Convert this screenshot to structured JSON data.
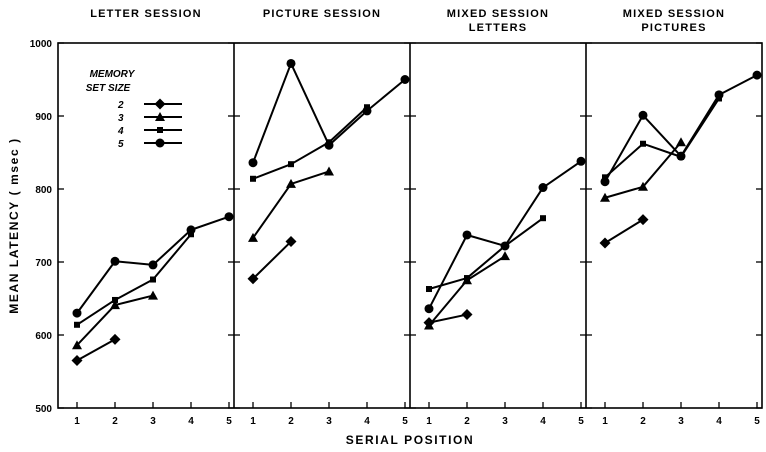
{
  "chart_data": {
    "type": "line",
    "ylabel": "MEAN LATENCY ( msec )",
    "xlabel": "SERIAL POSITION",
    "ylim": [
      500,
      1000
    ],
    "yticks": [
      "500",
      "600",
      "700",
      "800",
      "900",
      "1000"
    ],
    "xticks": [
      "1",
      "2",
      "3",
      "4",
      "5"
    ],
    "legend": {
      "title_lines": [
        "MEMORY",
        "SET SIZE"
      ],
      "placement": "top-left of first panel",
      "entries": [
        {
          "label": "2",
          "marker": "diamond"
        },
        {
          "label": "3",
          "marker": "triangle"
        },
        {
          "label": "4",
          "marker": "square"
        },
        {
          "label": "5",
          "marker": "circle"
        }
      ]
    },
    "panels": [
      {
        "title_lines": [
          "LETTER SESSION"
        ],
        "series": [
          {
            "set_size": "2",
            "marker": "diamond",
            "x": [
              1,
              2
            ],
            "y": [
              565,
              594
            ]
          },
          {
            "set_size": "3",
            "marker": "triangle",
            "x": [
              1,
              2,
              3
            ],
            "y": [
              586,
              641,
              654
            ]
          },
          {
            "set_size": "4",
            "marker": "square",
            "x": [
              1,
              2,
              3,
              4
            ],
            "y": [
              614,
              648,
              676,
              738
            ]
          },
          {
            "set_size": "5",
            "marker": "circle",
            "x": [
              1,
              2,
              3,
              4,
              5
            ],
            "y": [
              630,
              701,
              696,
              744,
              762
            ]
          }
        ]
      },
      {
        "title_lines": [
          "PICTURE SESSION"
        ],
        "series": [
          {
            "set_size": "2",
            "marker": "diamond",
            "x": [
              1,
              2
            ],
            "y": [
              677,
              728
            ]
          },
          {
            "set_size": "3",
            "marker": "triangle",
            "x": [
              1,
              2,
              3
            ],
            "y": [
              733,
              807,
              824
            ]
          },
          {
            "set_size": "4",
            "marker": "square",
            "x": [
              1,
              2,
              3,
              4
            ],
            "y": [
              814,
              834,
              864,
              912
            ]
          },
          {
            "set_size": "5",
            "marker": "circle",
            "x": [
              1,
              2,
              3,
              4,
              5
            ],
            "y": [
              836,
              972,
              860,
              907,
              950
            ]
          }
        ]
      },
      {
        "title_lines": [
          "MIXED SESSION",
          "LETTERS"
        ],
        "series": [
          {
            "set_size": "2",
            "marker": "diamond",
            "x": [
              1,
              2
            ],
            "y": [
              617,
              628
            ]
          },
          {
            "set_size": "3",
            "marker": "triangle",
            "x": [
              1,
              2,
              3
            ],
            "y": [
              613,
              675,
              708
            ]
          },
          {
            "set_size": "4",
            "marker": "square",
            "x": [
              1,
              2,
              3,
              4
            ],
            "y": [
              663,
              678,
              722,
              760
            ]
          },
          {
            "set_size": "5",
            "marker": "circle",
            "x": [
              1,
              2,
              3,
              4,
              5
            ],
            "y": [
              636,
              737,
              722,
              802,
              838
            ]
          }
        ]
      },
      {
        "title_lines": [
          "MIXED SESSION",
          "PICTURES"
        ],
        "series": [
          {
            "set_size": "2",
            "marker": "diamond",
            "x": [
              1,
              2
            ],
            "y": [
              726,
              758
            ]
          },
          {
            "set_size": "3",
            "marker": "triangle",
            "x": [
              1,
              2,
              3
            ],
            "y": [
              788,
              803,
              864
            ]
          },
          {
            "set_size": "4",
            "marker": "square",
            "x": [
              1,
              2,
              3,
              4
            ],
            "y": [
              816,
              862,
              844,
              924
            ]
          },
          {
            "set_size": "5",
            "marker": "circle",
            "x": [
              1,
              2,
              3,
              4,
              5
            ],
            "y": [
              810,
              901,
              845,
              929,
              956
            ]
          }
        ]
      }
    ]
  }
}
